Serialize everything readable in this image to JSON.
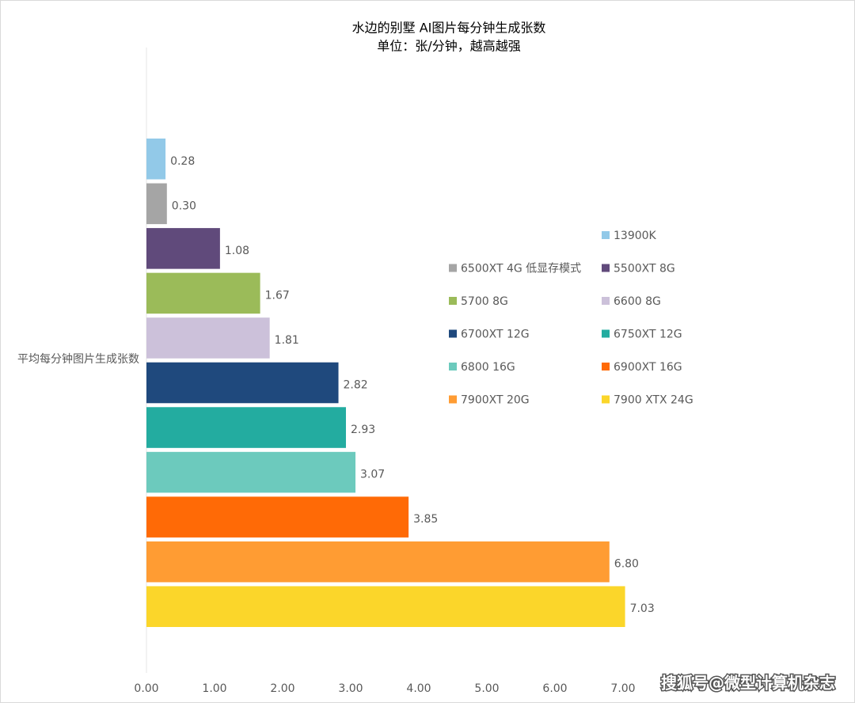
{
  "chart_data": {
    "type": "bar",
    "orientation": "horizontal",
    "title": "水边的别墅 AI图片每分钟生成张数",
    "subtitle": "单位：张/分钟，越高越强",
    "categories": [
      "平均每分钟图片生成张数"
    ],
    "series": [
      {
        "name": "13900K",
        "color": "#92c9e8",
        "values": [
          0.28
        ],
        "value_labels": [
          "0.28"
        ]
      },
      {
        "name": "6500XT 4G 低显存模式",
        "color": "#a5a5a5",
        "values": [
          0.3
        ],
        "value_labels": [
          "0.30"
        ]
      },
      {
        "name": "5500XT 8G",
        "color": "#604a7b",
        "values": [
          1.08
        ],
        "value_labels": [
          "1.08"
        ]
      },
      {
        "name": "5700 8G",
        "color": "#9bbb59",
        "values": [
          1.67
        ],
        "value_labels": [
          "1.67"
        ]
      },
      {
        "name": "6600 8G",
        "color": "#ccc1da",
        "values": [
          1.81
        ],
        "value_labels": [
          "1.81"
        ]
      },
      {
        "name": "6700XT 12G",
        "color": "#1f497d",
        "values": [
          2.82
        ],
        "value_labels": [
          "2.82"
        ]
      },
      {
        "name": "6750XT 12G",
        "color": "#23aca0",
        "values": [
          2.93
        ],
        "value_labels": [
          "2.93"
        ]
      },
      {
        "name": "6800 16G",
        "color": "#6ccabd",
        "values": [
          3.07
        ],
        "value_labels": [
          "3.07"
        ]
      },
      {
        "name": "6900XT 16G",
        "color": "#ff6a06",
        "values": [
          3.85
        ],
        "value_labels": [
          "3.85"
        ]
      },
      {
        "name": "7900XT 20G",
        "color": "#ff9c33",
        "values": [
          6.8
        ],
        "value_labels": [
          "6.80"
        ]
      },
      {
        "name": "7900 XTX 24G",
        "color": "#fbd62a",
        "values": [
          7.03
        ],
        "value_labels": [
          "7.03"
        ]
      }
    ],
    "xlim": [
      0,
      7
    ],
    "xticks": [
      {
        "value": 0,
        "label": "0.00"
      },
      {
        "value": 1,
        "label": "1.00"
      },
      {
        "value": 2,
        "label": "2.00"
      },
      {
        "value": 3,
        "label": "3.00"
      },
      {
        "value": 4,
        "label": "4.00"
      },
      {
        "value": 5,
        "label": "5.00"
      },
      {
        "value": 6,
        "label": "6.00"
      },
      {
        "value": 7,
        "label": "7.00"
      }
    ],
    "grid": false,
    "legend": "right",
    "watermark": "搜狐号@微型计算机杂志"
  }
}
